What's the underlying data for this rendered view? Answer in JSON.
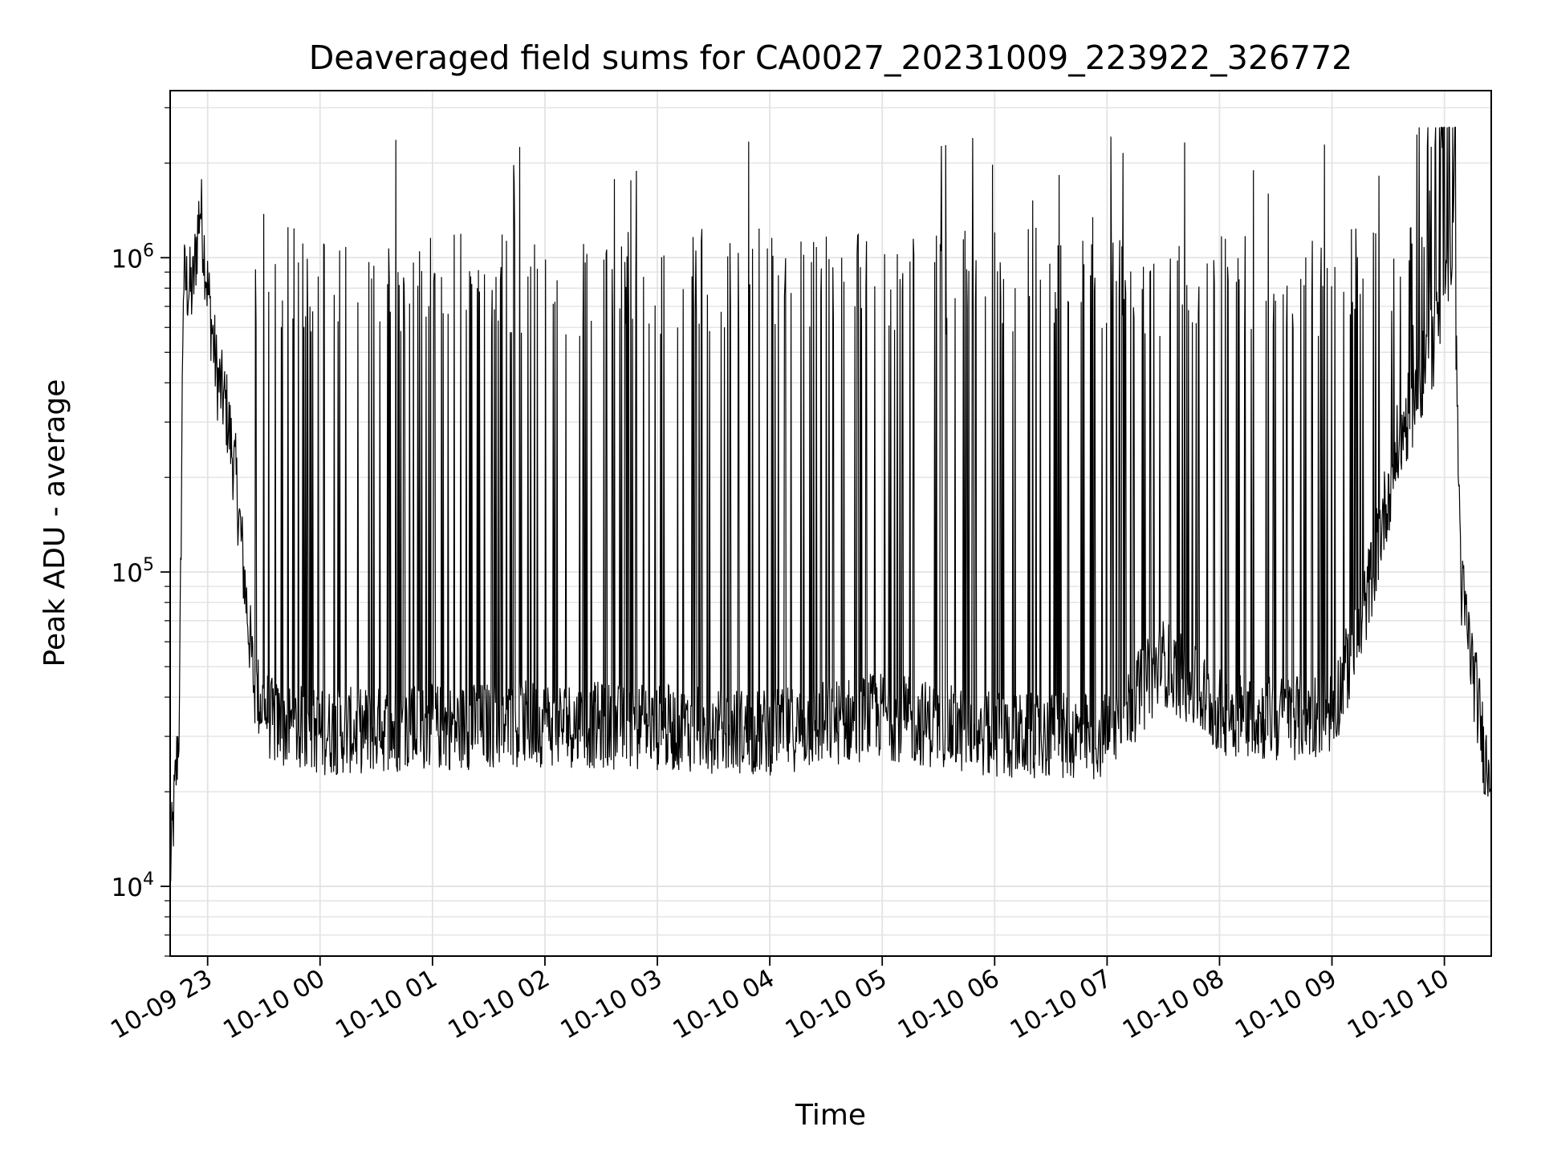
{
  "chart_data": {
    "type": "line",
    "title": "Deaveraged field sums for CA0027_20231009_223922_326772",
    "xlabel": "Time",
    "ylabel": "Peak ADU - average",
    "yscale": "log",
    "ylim": [
      6000,
      3400000
    ],
    "xlim": [
      "2023-10-09 22:40",
      "2023-10-10 10:25"
    ],
    "grid": true,
    "x_ticks": [
      {
        "label": "10-09 23",
        "time": "2023-10-09 23:00"
      },
      {
        "label": "10-10 00",
        "time": "2023-10-10 00:00"
      },
      {
        "label": "10-10 01",
        "time": "2023-10-10 01:00"
      },
      {
        "label": "10-10 02",
        "time": "2023-10-10 02:00"
      },
      {
        "label": "10-10 03",
        "time": "2023-10-10 03:00"
      },
      {
        "label": "10-10 04",
        "time": "2023-10-10 04:00"
      },
      {
        "label": "10-10 05",
        "time": "2023-10-10 05:00"
      },
      {
        "label": "10-10 06",
        "time": "2023-10-10 06:00"
      },
      {
        "label": "10-10 07",
        "time": "2023-10-10 07:00"
      },
      {
        "label": "10-10 08",
        "time": "2023-10-10 08:00"
      },
      {
        "label": "10-10 09",
        "time": "2023-10-10 09:00"
      },
      {
        "label": "10-10 10",
        "time": "2023-10-10 10:00"
      }
    ],
    "y_ticks": [
      {
        "base": "10",
        "exp": "4",
        "value": 10000
      },
      {
        "base": "10",
        "exp": "5",
        "value": 100000
      },
      {
        "base": "10",
        "exp": "6",
        "value": 1000000
      }
    ],
    "series": [
      {
        "color": "#000000",
        "points": [
          {
            "t": "2023-10-09 22:40",
            "y": 11000
          },
          {
            "t": "2023-10-09 22:45",
            "y": 35000
          },
          {
            "t": "2023-10-09 22:47",
            "y": 850000
          },
          {
            "t": "2023-10-09 22:52",
            "y": 780000
          },
          {
            "t": "2023-10-09 22:56",
            "y": 1500000
          },
          {
            "t": "2023-10-09 23:00",
            "y": 800000
          },
          {
            "t": "2023-10-09 23:05",
            "y": 420000
          },
          {
            "t": "2023-10-09 23:10",
            "y": 330000
          },
          {
            "t": "2023-10-09 23:15",
            "y": 200000
          },
          {
            "t": "2023-10-09 23:20",
            "y": 90000
          },
          {
            "t": "2023-10-09 23:25",
            "y": 42000
          },
          {
            "t": "2023-10-09 23:35",
            "y": 33000
          },
          {
            "t": "2023-10-10 00:00",
            "y": 31000
          },
          {
            "t": "2023-10-10 01:00",
            "y": 32000
          },
          {
            "t": "2023-10-10 02:00",
            "y": 33000
          },
          {
            "t": "2023-10-10 03:00",
            "y": 32000
          },
          {
            "t": "2023-10-10 04:00",
            "y": 31000
          },
          {
            "t": "2023-10-10 05:00",
            "y": 35000
          },
          {
            "t": "2023-10-10 06:00",
            "y": 30000
          },
          {
            "t": "2023-10-10 07:00",
            "y": 30000
          },
          {
            "t": "2023-10-10 07:30",
            "y": 52000
          },
          {
            "t": "2023-10-10 08:00",
            "y": 36000
          },
          {
            "t": "2023-10-10 08:30",
            "y": 34000
          },
          {
            "t": "2023-10-10 09:00",
            "y": 36000
          },
          {
            "t": "2023-10-10 09:15",
            "y": 65000
          },
          {
            "t": "2023-10-10 09:35",
            "y": 250000
          },
          {
            "t": "2023-10-10 09:55",
            "y": 550000
          },
          {
            "t": "2023-10-10 10:05",
            "y": 1200000
          },
          {
            "t": "2023-10-10 10:07",
            "y": 300000
          },
          {
            "t": "2023-10-10 10:09",
            "y": 90000
          },
          {
            "t": "2023-10-10 10:15",
            "y": 50000
          },
          {
            "t": "2023-10-10 10:22",
            "y": 25000
          }
        ],
        "spikes_note_levels": {
          "typical_peak": 1000000,
          "max_peak": 2600000,
          "min_dip": 17000
        }
      }
    ]
  }
}
